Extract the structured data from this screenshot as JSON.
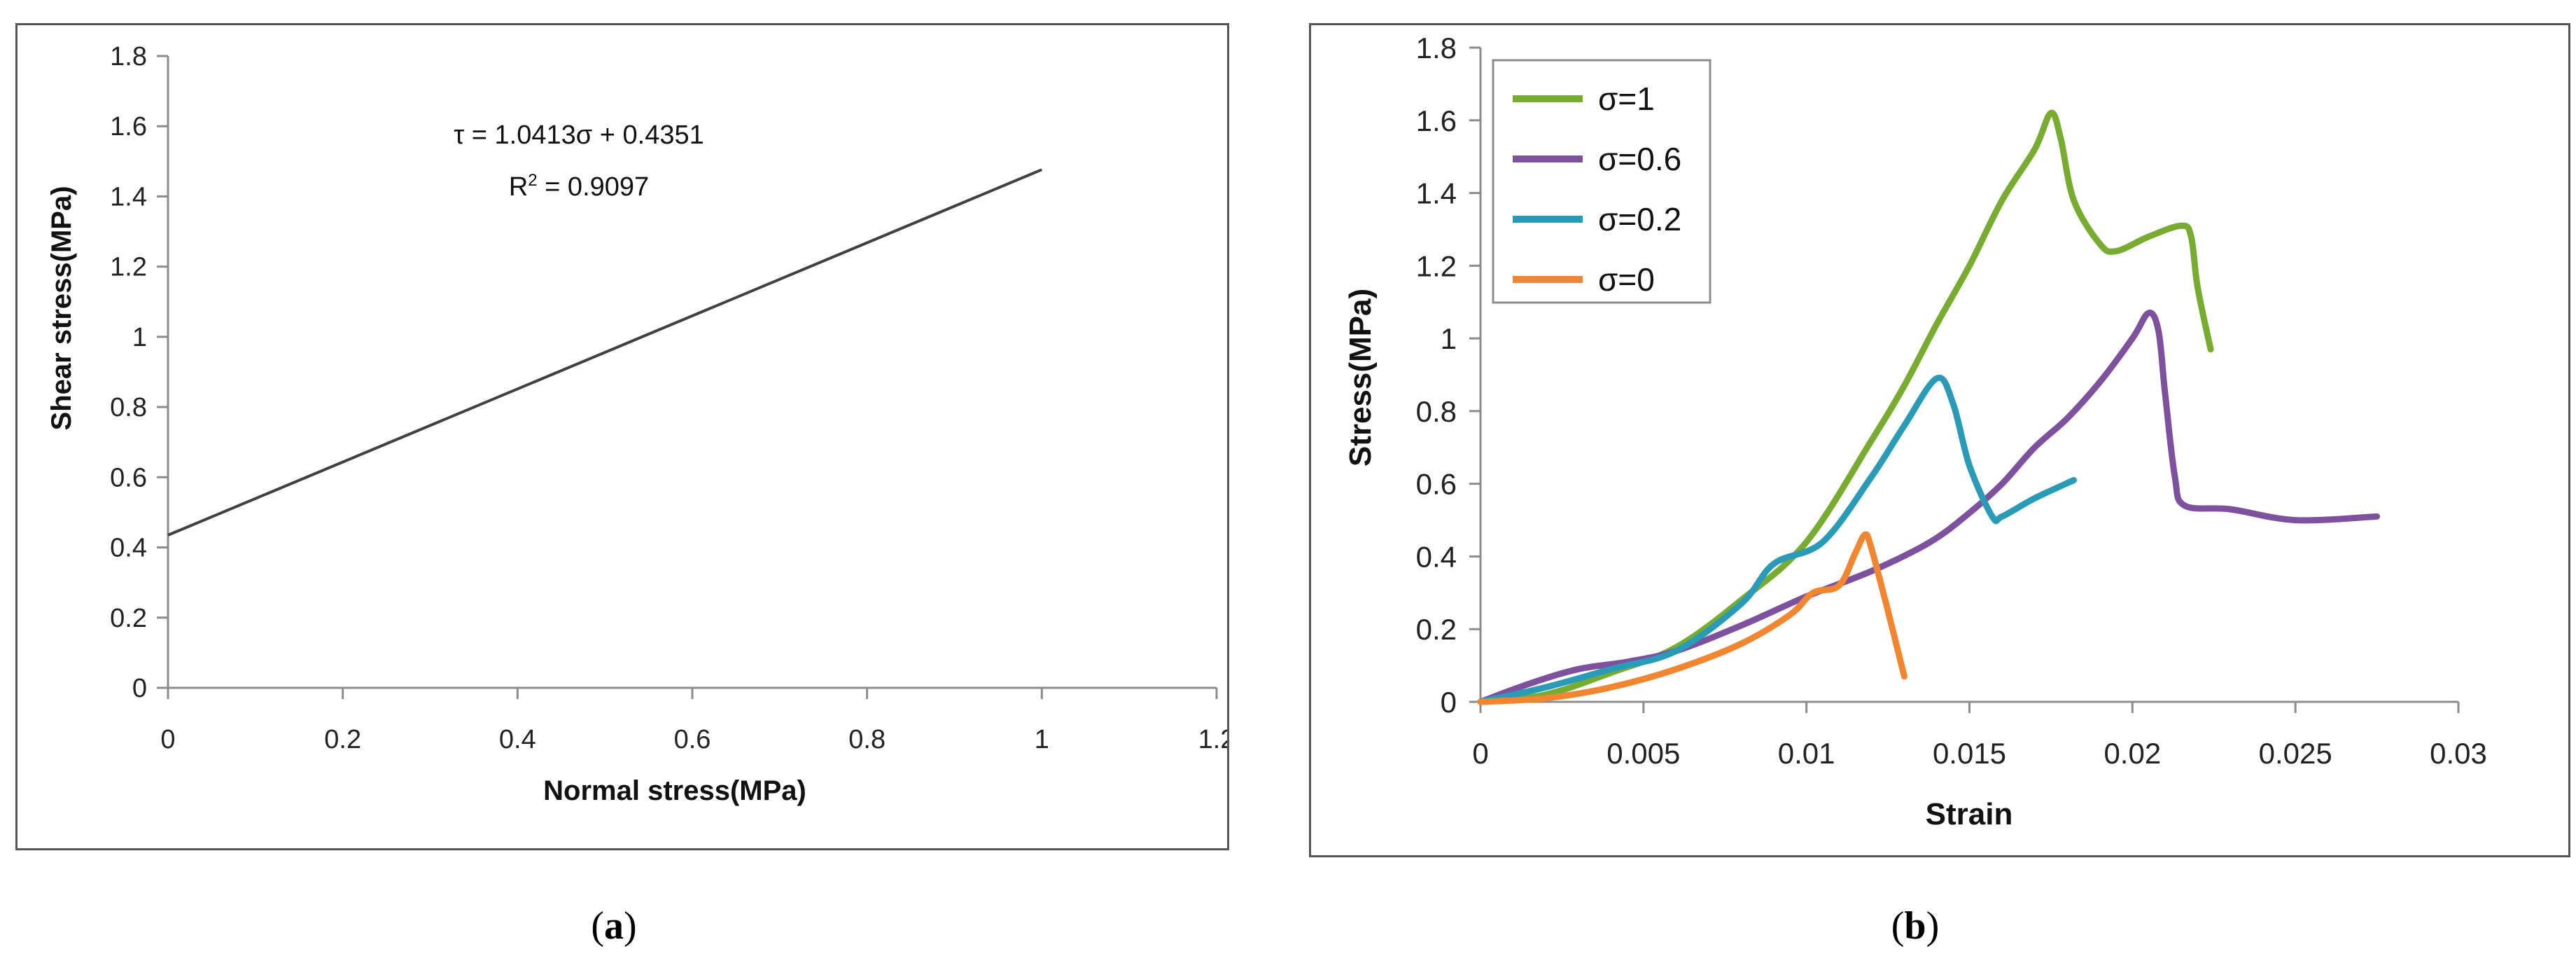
{
  "chart_data": [
    {
      "type": "line",
      "panel_label": "a",
      "title": "",
      "xlabel": "Normal stress(MPa)",
      "ylabel": "Shear stress(MPa)",
      "xlim": [
        0,
        1.2
      ],
      "ylim": [
        0,
        1.8
      ],
      "x_ticks": [
        "0",
        "0.2",
        "0.4",
        "0.6",
        "0.8",
        "1",
        "1.2"
      ],
      "y_ticks": [
        "0",
        "0.2",
        "0.4",
        "0.6",
        "0.8",
        "1",
        "1.2",
        "1.4",
        "1.6",
        "1.8"
      ],
      "grid": false,
      "equation": "τ = 1.0413σ + 0.4351",
      "r_squared_label": "R",
      "r_squared_sup": "2",
      "r_squared_value": " = 0.9097",
      "series": [
        {
          "color": "#404040",
          "points": [
            [
              0,
              0.4351
            ],
            [
              1,
              1.4764
            ]
          ]
        }
      ]
    },
    {
      "type": "line",
      "panel_label": "b",
      "title": "",
      "xlabel": "Strain",
      "ylabel": "Stress(MPa)",
      "xlim": [
        0,
        0.03
      ],
      "ylim": [
        0,
        1.8
      ],
      "x_ticks": [
        "0",
        "0.005",
        "0.01",
        "0.015",
        "0.02",
        "0.025",
        "0.03"
      ],
      "y_ticks": [
        "0",
        "0.2",
        "0.4",
        "0.6",
        "0.8",
        "1",
        "1.2",
        "1.4",
        "1.6",
        "1.8"
      ],
      "grid": false,
      "legend_position": "top-left",
      "series": [
        {
          "name": "σ=1",
          "color": "#77AC30",
          "points": [
            [
              0,
              0
            ],
            [
              0.002,
              0.02
            ],
            [
              0.004,
              0.08
            ],
            [
              0.006,
              0.15
            ],
            [
              0.008,
              0.28
            ],
            [
              0.01,
              0.44
            ],
            [
              0.012,
              0.72
            ],
            [
              0.013,
              0.87
            ],
            [
              0.014,
              1.04
            ],
            [
              0.015,
              1.2
            ],
            [
              0.016,
              1.38
            ],
            [
              0.017,
              1.52
            ],
            [
              0.0175,
              1.62
            ],
            [
              0.0178,
              1.55
            ],
            [
              0.0182,
              1.38
            ],
            [
              0.019,
              1.26
            ],
            [
              0.0195,
              1.24
            ],
            [
              0.0205,
              1.28
            ],
            [
              0.0215,
              1.31
            ],
            [
              0.0218,
              1.28
            ],
            [
              0.022,
              1.14
            ],
            [
              0.0224,
              0.97
            ]
          ]
        },
        {
          "name": "σ=0.6",
          "color": "#7E519F",
          "points": [
            [
              0,
              0
            ],
            [
              0.0015,
              0.05
            ],
            [
              0.003,
              0.09
            ],
            [
              0.0045,
              0.11
            ],
            [
              0.006,
              0.14
            ],
            [
              0.008,
              0.21
            ],
            [
              0.01,
              0.29
            ],
            [
              0.012,
              0.36
            ],
            [
              0.0138,
              0.44
            ],
            [
              0.015,
              0.52
            ],
            [
              0.016,
              0.6
            ],
            [
              0.017,
              0.7
            ],
            [
              0.018,
              0.78
            ],
            [
              0.019,
              0.88
            ],
            [
              0.02,
              1.0
            ],
            [
              0.0205,
              1.07
            ],
            [
              0.0208,
              1.02
            ],
            [
              0.021,
              0.85
            ],
            [
              0.0213,
              0.62
            ],
            [
              0.0216,
              0.54
            ],
            [
              0.023,
              0.53
            ],
            [
              0.025,
              0.5
            ],
            [
              0.0275,
              0.51
            ]
          ]
        },
        {
          "name": "σ=0.2",
          "color": "#2A9BB7",
          "points": [
            [
              0,
              0
            ],
            [
              0.002,
              0.04
            ],
            [
              0.004,
              0.09
            ],
            [
              0.006,
              0.14
            ],
            [
              0.008,
              0.27
            ],
            [
              0.009,
              0.38
            ],
            [
              0.0105,
              0.44
            ],
            [
              0.012,
              0.62
            ],
            [
              0.013,
              0.76
            ],
            [
              0.014,
              0.89
            ],
            [
              0.0145,
              0.82
            ],
            [
              0.015,
              0.65
            ],
            [
              0.0157,
              0.51
            ],
            [
              0.016,
              0.51
            ],
            [
              0.017,
              0.56
            ],
            [
              0.0182,
              0.61
            ]
          ]
        },
        {
          "name": "σ=0",
          "color": "#F28530",
          "points": [
            [
              0,
              0
            ],
            [
              0.002,
              0.01
            ],
            [
              0.004,
              0.04
            ],
            [
              0.006,
              0.09
            ],
            [
              0.008,
              0.16
            ],
            [
              0.0095,
              0.24
            ],
            [
              0.0102,
              0.3
            ],
            [
              0.011,
              0.32
            ],
            [
              0.0115,
              0.41
            ],
            [
              0.0118,
              0.46
            ],
            [
              0.012,
              0.42
            ],
            [
              0.0125,
              0.25
            ],
            [
              0.013,
              0.07
            ]
          ]
        }
      ]
    }
  ],
  "captions": {
    "a": {
      "open": "(",
      "letter": "a",
      "close": ")"
    },
    "b": {
      "open": "(",
      "letter": "b",
      "close": ")"
    }
  }
}
